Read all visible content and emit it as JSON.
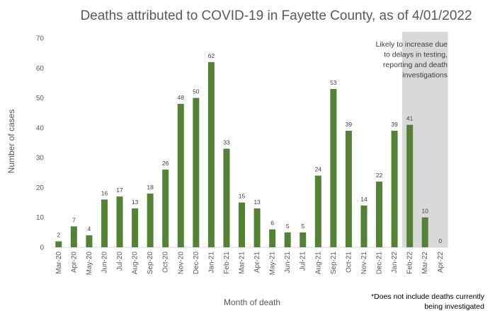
{
  "chart_data": {
    "type": "bar",
    "title": "Deaths attributed to COVID-19 in Fayette County, as of 4/01/2022",
    "xlabel": "Month of death",
    "ylabel": "Number of cases",
    "ylim": [
      0,
      70
    ],
    "yticks": [
      0,
      10,
      20,
      30,
      40,
      50,
      60,
      70
    ],
    "grid": false,
    "categories": [
      "Mar-20",
      "Apr-20",
      "May-20",
      "Jun-20",
      "Jul-20",
      "Aug-20",
      "Sep-20",
      "Oct-20",
      "Nov-20",
      "Dec-20",
      "Jan-21",
      "Feb-21",
      "Mar-21",
      "Apr-21",
      "May-21",
      "Jun-21",
      "Jul-21",
      "Aug-21",
      "Sep-21",
      "Oct-21",
      "Nov-21",
      "Dec-21",
      "Jan-22",
      "Feb-22",
      "Mar-22",
      "Apr-22"
    ],
    "values": [
      2,
      7,
      4,
      16,
      17,
      13,
      18,
      26,
      48,
      50,
      62,
      33,
      15,
      13,
      6,
      5,
      5,
      24,
      53,
      39,
      14,
      22,
      39,
      41,
      10,
      0
    ],
    "bar_color": "#548235",
    "shaded_region": {
      "categories": [
        "Feb-22",
        "Mar-22",
        "Apr-22"
      ],
      "color": "#d9d9d9",
      "note_lines": [
        "Likely to increase due",
        "to delays in testing,",
        "reporting and death",
        "investigations"
      ]
    },
    "footnote_lines": [
      "*Does not include deaths currently",
      "being investigated"
    ]
  }
}
